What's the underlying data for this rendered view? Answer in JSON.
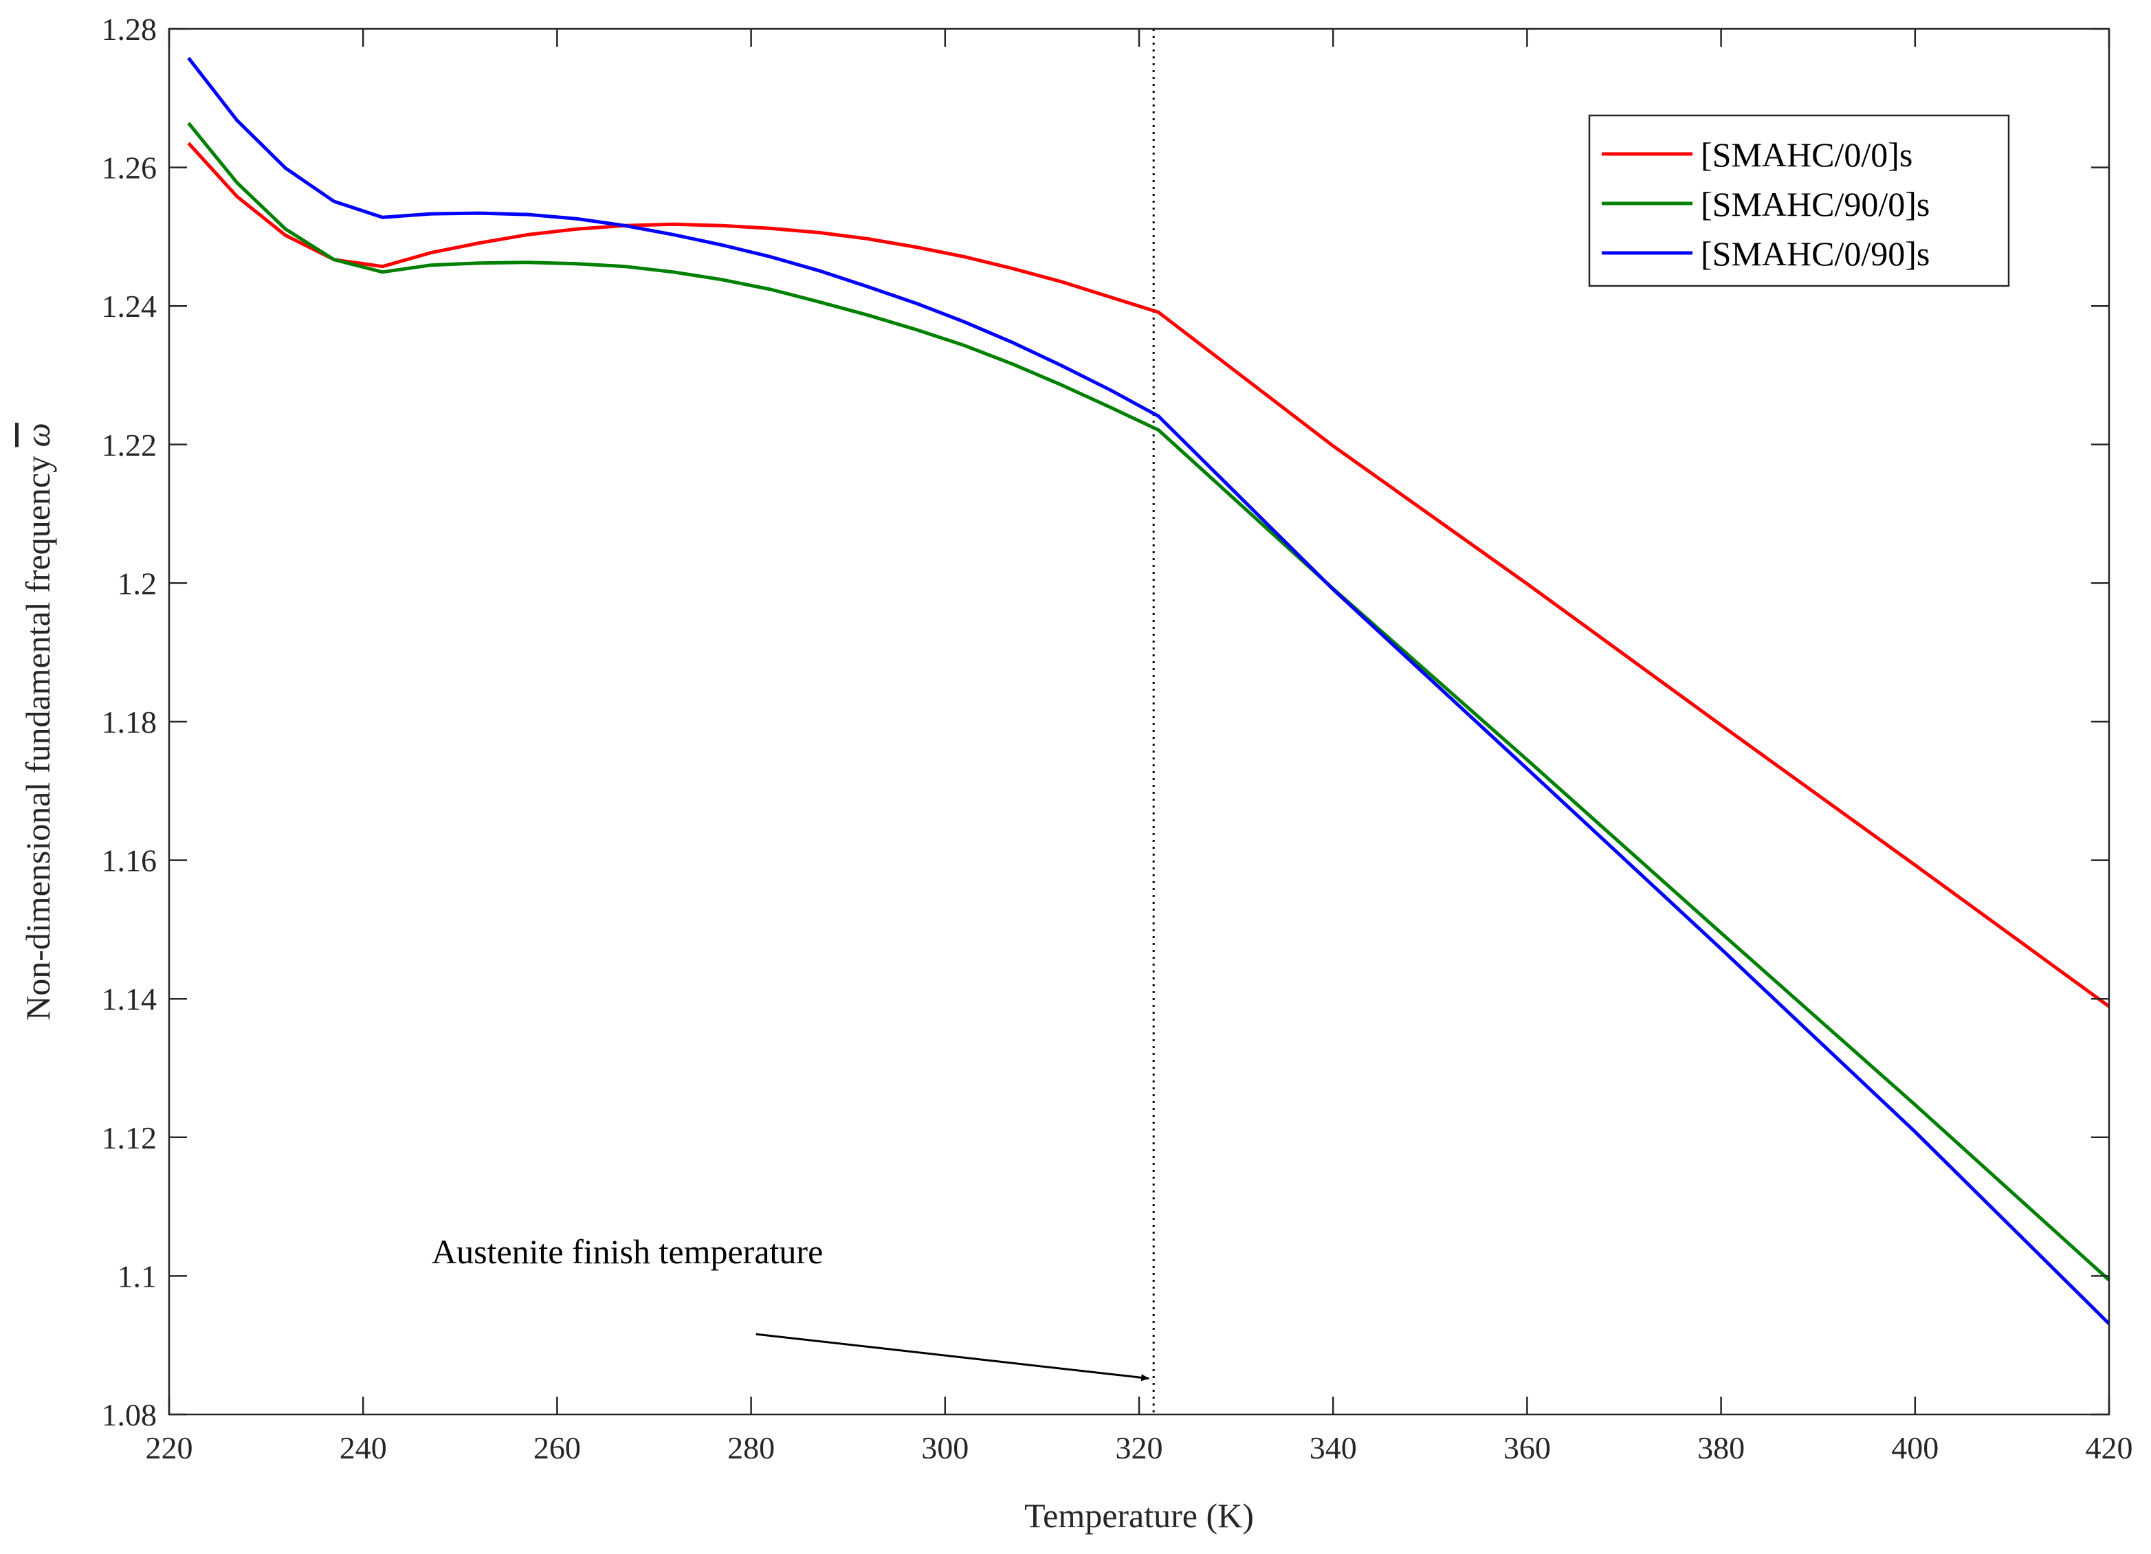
{
  "chart_data": {
    "type": "line",
    "title": "",
    "xlabel": "Temperature (K)",
    "ylabel": "Non-dimensional fundamental frequency",
    "ylabel_symbol": "ω",
    "xlim": [
      220,
      420
    ],
    "ylim": [
      1.08,
      1.28
    ],
    "xticks": [
      220,
      240,
      260,
      280,
      300,
      320,
      340,
      360,
      380,
      400,
      420
    ],
    "xtick_labels": [
      "220",
      "240",
      "260",
      "280",
      "300",
      "320",
      "340",
      "360",
      "380",
      "400",
      "420"
    ],
    "yticks": [
      1.08,
      1.1,
      1.12,
      1.14,
      1.16,
      1.18,
      1.2,
      1.22,
      1.24,
      1.26,
      1.28
    ],
    "ytick_labels": [
      "1.08",
      "1.1",
      "1.12",
      "1.14",
      "1.16",
      "1.18",
      "1.2",
      "1.22",
      "1.24",
      "1.26",
      "1.28"
    ],
    "grid": false,
    "legend_position": "top-right",
    "series": [
      {
        "name": "[SMAHC/0/0]s",
        "color": "#ff0000",
        "x": [
          222,
          227,
          232,
          237,
          242,
          247,
          252,
          257,
          262,
          267,
          272,
          277,
          282,
          287,
          292,
          297,
          302,
          307,
          312,
          317,
          322,
          340,
          360,
          380,
          400,
          420
        ],
        "y": [
          1.2635,
          1.2558,
          1.2502,
          1.2467,
          1.2457,
          1.2477,
          1.2491,
          1.2503,
          1.2511,
          1.2516,
          1.2518,
          1.2516,
          1.2512,
          1.2506,
          1.2497,
          1.2485,
          1.2471,
          1.2454,
          1.2435,
          1.2413,
          1.2391,
          1.2198,
          1.1999,
          1.1795,
          1.1593,
          1.1389
        ]
      },
      {
        "name": "[SMAHC/90/0]s",
        "color": "#008000",
        "x": [
          222,
          227,
          232,
          237,
          242,
          247,
          252,
          257,
          262,
          267,
          272,
          277,
          282,
          287,
          292,
          297,
          302,
          307,
          312,
          317,
          322,
          340,
          360,
          380,
          400,
          420
        ],
        "y": [
          1.2664,
          1.2578,
          1.2511,
          1.2467,
          1.2449,
          1.2459,
          1.2462,
          1.2463,
          1.2461,
          1.2457,
          1.2449,
          1.2438,
          1.2424,
          1.2406,
          1.2387,
          1.2366,
          1.2343,
          1.2316,
          1.2286,
          1.2254,
          1.2221,
          1.1992,
          1.1745,
          1.1495,
          1.1247,
          1.0994
        ]
      },
      {
        "name": "[SMAHC/0/90]s",
        "color": "#0000ff",
        "x": [
          222,
          227,
          232,
          237,
          242,
          247,
          252,
          257,
          262,
          267,
          272,
          277,
          282,
          287,
          292,
          297,
          302,
          307,
          312,
          317,
          322,
          340,
          360,
          380,
          400,
          420
        ],
        "y": [
          1.2758,
          1.2668,
          1.2599,
          1.2551,
          1.2528,
          1.2533,
          1.2534,
          1.2532,
          1.2526,
          1.2516,
          1.2503,
          1.2488,
          1.2471,
          1.2451,
          1.2428,
          1.2404,
          1.2377,
          1.2347,
          1.2314,
          1.2279,
          1.2241,
          1.1991,
          1.1732,
          1.1472,
          1.1208,
          1.0931
        ]
      }
    ],
    "reference_line": {
      "x": 321.5,
      "style": "dotted",
      "color": "#000000"
    },
    "annotation": {
      "text": "Austenite finish temperature",
      "arrow_start": {
        "x": 280.5,
        "y": 1.0916
      },
      "arrow_end": {
        "x": 321.0,
        "y": 1.0852
      }
    }
  }
}
